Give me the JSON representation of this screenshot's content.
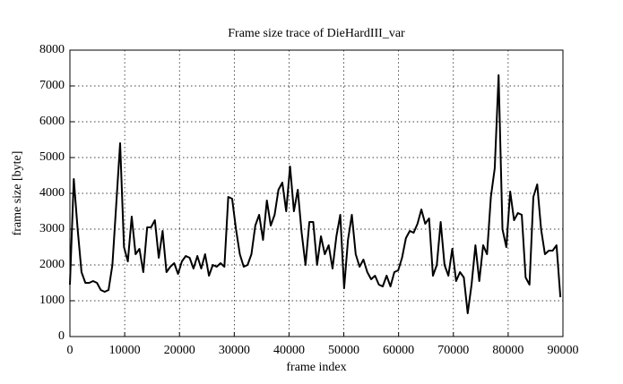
{
  "chart_data": {
    "type": "line",
    "title": "Frame size trace of DieHardIII_var",
    "x_label": "frame index",
    "y_label": "frame size [byte]",
    "xlim": [
      0,
      90000
    ],
    "ylim": [
      0,
      8000
    ],
    "xticks": [
      0,
      10000,
      20000,
      30000,
      40000,
      50000,
      60000,
      70000,
      80000,
      90000
    ],
    "yticks": [
      0,
      1000,
      2000,
      3000,
      4000,
      5000,
      6000,
      7000,
      8000
    ],
    "grid": true,
    "x": [
      0,
      705,
      1410,
      2115,
      2820,
      3525,
      4230,
      4935,
      5640,
      6345,
      7050,
      7755,
      8460,
      9165,
      9870,
      10575,
      11280,
      11985,
      12690,
      13395,
      14100,
      14805,
      15510,
      16215,
      16920,
      17625,
      18330,
      19035,
      19740,
      20445,
      21150,
      21855,
      22560,
      23265,
      23970,
      24675,
      25380,
      26085,
      26790,
      27495,
      28200,
      28905,
      29610,
      30315,
      31020,
      31725,
      32430,
      33135,
      33840,
      34545,
      35250,
      35955,
      36660,
      37365,
      38070,
      38775,
      39480,
      40185,
      40890,
      41595,
      42300,
      43005,
      43710,
      44415,
      45120,
      45825,
      46530,
      47235,
      47940,
      48645,
      49350,
      50055,
      50760,
      51465,
      52170,
      52875,
      53580,
      54285,
      54990,
      55695,
      56400,
      57105,
      57810,
      58515,
      59220,
      59925,
      60630,
      61335,
      62040,
      62745,
      63450,
      64155,
      64860,
      65565,
      66270,
      66975,
      67680,
      68385,
      69090,
      69795,
      70500,
      71205,
      71910,
      72615,
      73320,
      74025,
      74730,
      75435,
      76140,
      76845,
      77550,
      78255,
      78960,
      79665,
      80370,
      81075,
      81780,
      82485,
      83190,
      83895,
      84600,
      85305,
      86010,
      86715,
      87420,
      88125,
      88830,
      89535
    ],
    "series": [
      {
        "color": "#000000",
        "values": [
          1450,
          4400,
          3000,
          1800,
          1500,
          1500,
          1550,
          1500,
          1300,
          1250,
          1300,
          2000,
          3700,
          5400,
          2500,
          2100,
          3350,
          2300,
          2450,
          1800,
          3050,
          3050,
          3250,
          2200,
          2950,
          1800,
          1950,
          2050,
          1750,
          2100,
          2250,
          2200,
          1900,
          2250,
          1900,
          2300,
          1700,
          2000,
          1950,
          2050,
          1950,
          3900,
          3850,
          3000,
          2300,
          1950,
          2000,
          2300,
          3100,
          3400,
          2700,
          3800,
          3100,
          3400,
          4100,
          4300,
          3500,
          4750,
          3500,
          4100,
          2900,
          2000,
          3200,
          3200,
          2000,
          2800,
          2300,
          2550,
          1900,
          2800,
          3400,
          1350,
          2700,
          3400,
          2300,
          1950,
          2150,
          1800,
          1600,
          1700,
          1450,
          1400,
          1700,
          1400,
          1800,
          1850,
          2200,
          2750,
          2950,
          2900,
          3150,
          3550,
          3150,
          3300,
          1700,
          2000,
          3200,
          2000,
          1700,
          2450,
          1550,
          1800,
          1650,
          650,
          1450,
          2550,
          1550,
          2550,
          2300,
          3900,
          4700,
          7300,
          3000,
          2500,
          4050,
          3250,
          3450,
          3400,
          1650,
          1450,
          3900,
          4250,
          3000,
          2300,
          2400,
          2400,
          2550,
          1100
        ]
      }
    ]
  }
}
